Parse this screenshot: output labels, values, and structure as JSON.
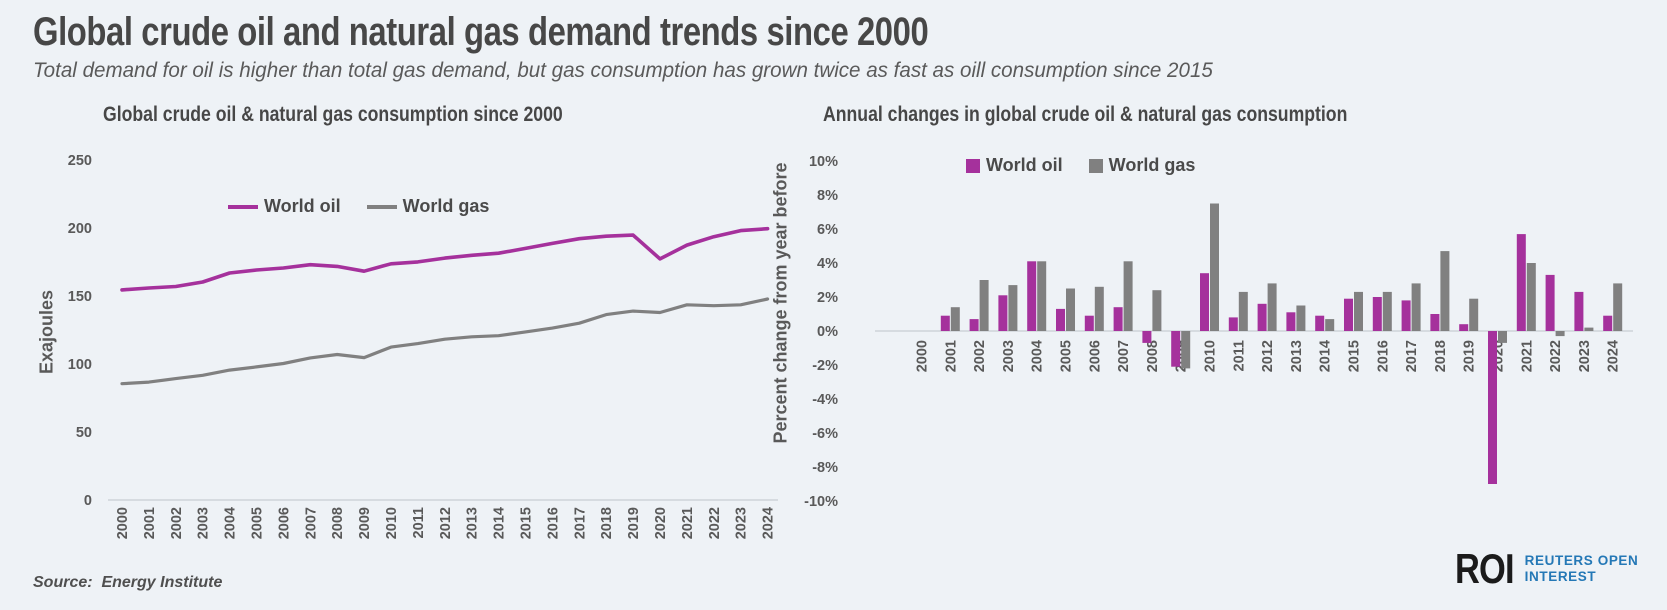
{
  "header": {
    "title": "Global crude oil and natural gas demand trends since 2000",
    "subtitle": "Total demand for oil is higher than total gas demand, but gas consumption has grown twice as fast as oill consumption since 2015"
  },
  "source": {
    "label": "Source:  Energy Institute"
  },
  "logo": {
    "abbr": "ROI",
    "line1": "REUTERS OPEN",
    "line2": "INTEREST"
  },
  "colors": {
    "oil": "#a5319c",
    "gas": "#808080",
    "axis_line": "#cdd3d9",
    "tick_text": "#595959",
    "title_text": "#474747",
    "background": "#eef2f6",
    "logo_blue": "#2478b6",
    "logo_dark": "#1b1b1b"
  },
  "years": [
    "2000",
    "2001",
    "2002",
    "2003",
    "2004",
    "2005",
    "2006",
    "2007",
    "2008",
    "2009",
    "2010",
    "2011",
    "2012",
    "2013",
    "2014",
    "2015",
    "2016",
    "2017",
    "2018",
    "2019",
    "2020",
    "2021",
    "2022",
    "2023",
    "2024"
  ],
  "chart_data": [
    {
      "type": "line",
      "title": "Global crude oil & natural gas consumption since 2000",
      "xlabel": "",
      "ylabel": "Exajoules",
      "ylim": [
        0,
        250
      ],
      "grid": false,
      "legend_position": "top-center-inside",
      "y_ticks": [
        {
          "value": 250,
          "label": "250"
        },
        {
          "value": 200,
          "label": "200"
        },
        {
          "value": 150,
          "label": "150"
        },
        {
          "value": 100,
          "label": "100"
        },
        {
          "value": 50,
          "label": "50"
        },
        {
          "value": 0,
          "label": "0"
        }
      ],
      "series": [
        {
          "name": "World oil",
          "color_key": "oil",
          "values": [
            154.5,
            155.9,
            157.0,
            160.3,
            166.9,
            169.1,
            170.6,
            173.0,
            171.8,
            168.2,
            173.7,
            175.1,
            177.9,
            179.9,
            181.5,
            185.0,
            188.7,
            192.1,
            194.0,
            194.8,
            177.3,
            187.4,
            193.6,
            198.1,
            199.5
          ]
        },
        {
          "name": "World gas",
          "color_key": "gas",
          "values": [
            85.5,
            86.7,
            89.3,
            91.7,
            95.5,
            97.9,
            100.4,
            104.5,
            107.0,
            104.7,
            112.4,
            115.0,
            118.2,
            120.0,
            120.8,
            123.6,
            126.4,
            130.0,
            136.3,
            138.9,
            137.9,
            143.5,
            142.9,
            143.5,
            147.8
          ]
        }
      ]
    },
    {
      "type": "bar",
      "title": "Annual changes in global crude oil & natural gas consumption",
      "xlabel": "",
      "ylabel": "Percent change from year before",
      "ylim": [
        -10,
        10
      ],
      "grid": false,
      "legend_position": "top-center-inside",
      "y_ticks": [
        {
          "value": 10,
          "label": "10%"
        },
        {
          "value": 8,
          "label": "8%"
        },
        {
          "value": 6,
          "label": "6%"
        },
        {
          "value": 4,
          "label": "4%"
        },
        {
          "value": 2,
          "label": "2%"
        },
        {
          "value": 0,
          "label": "0%"
        },
        {
          "value": -2,
          "label": "-2%"
        },
        {
          "value": -4,
          "label": "-4%"
        },
        {
          "value": -6,
          "label": "-6%"
        },
        {
          "value": -8,
          "label": "-8%"
        },
        {
          "value": -10,
          "label": "-10%"
        }
      ],
      "series": [
        {
          "name": "World oil",
          "color_key": "oil",
          "values": [
            null,
            0.9,
            0.7,
            2.1,
            4.1,
            1.3,
            0.9,
            1.4,
            -0.7,
            -2.1,
            3.4,
            0.8,
            1.6,
            1.1,
            0.9,
            1.9,
            2.0,
            1.8,
            1.0,
            0.4,
            -9.0,
            5.7,
            3.3,
            2.3,
            0.9
          ]
        },
        {
          "name": "World gas",
          "color_key": "gas",
          "values": [
            null,
            1.4,
            3.0,
            2.7,
            4.1,
            2.5,
            2.6,
            4.1,
            2.4,
            -2.2,
            7.5,
            2.3,
            2.8,
            1.5,
            0.7,
            2.3,
            2.3,
            2.8,
            4.7,
            1.9,
            -0.7,
            4.0,
            -0.3,
            0.2,
            2.8
          ]
        }
      ]
    }
  ]
}
